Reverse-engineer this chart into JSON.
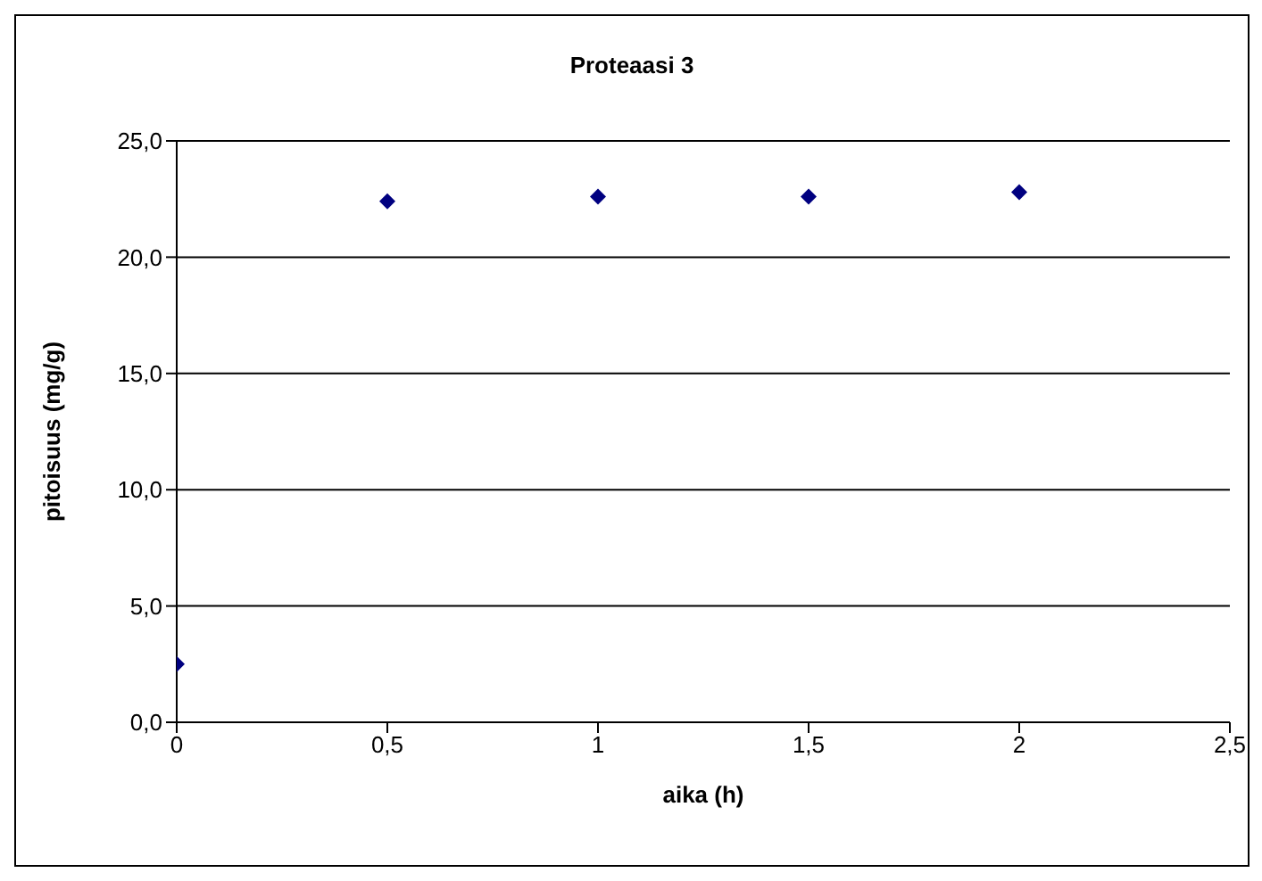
{
  "chart_data": {
    "type": "scatter",
    "title": "Proteaasi 3",
    "xlabel": "aika (h)",
    "ylabel": "pitoisuus (mg/g)",
    "x": [
      0,
      0.5,
      1,
      1.5,
      2
    ],
    "series": [
      {
        "color": "#000080",
        "values": [
          2.5,
          22.4,
          22.6,
          22.6,
          22.8
        ]
      }
    ],
    "xlim": [
      0,
      2.5
    ],
    "xticks": [
      0,
      {
        "value": 0.5,
        "label": "0,5"
      },
      1,
      {
        "value": 1.5,
        "label": "1,5"
      },
      2,
      {
        "value": 2.5,
        "label": "2,5"
      }
    ],
    "ylim": [
      0,
      25
    ],
    "yticks": [
      {
        "value": 0,
        "label": "0,0"
      },
      {
        "value": 5,
        "label": "5,0"
      },
      {
        "value": 10,
        "label": "10,0"
      },
      {
        "value": 15,
        "label": "15,0"
      },
      {
        "value": 20,
        "label": "20,0"
      },
      {
        "value": 25,
        "label": "25,0"
      }
    ],
    "grid": "y",
    "marker": "diamond",
    "legend": false
  }
}
